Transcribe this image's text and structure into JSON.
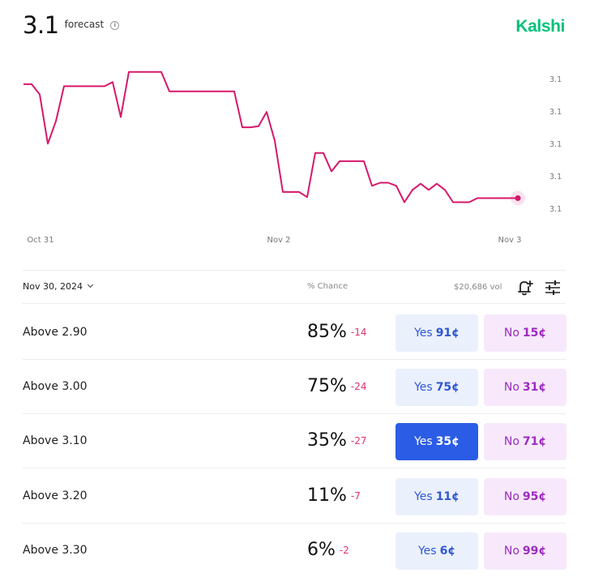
{
  "header": {
    "value": "3.1",
    "label": "forecast",
    "info_icon": "info-icon",
    "brand": "Kalshi"
  },
  "chart_data": {
    "type": "line",
    "series_color": "#d6186b",
    "y_tick_labels": [
      "3.1",
      "3.1",
      "3.1",
      "3.1",
      "3.1"
    ],
    "x_tick_labels": [
      "Oct 31",
      "Nov 2",
      "Nov 3"
    ],
    "x": [
      0,
      1,
      2,
      3,
      4,
      5,
      6,
      7,
      8,
      9,
      10,
      11,
      12,
      13,
      14,
      15,
      16,
      17,
      18,
      19,
      20,
      21,
      22,
      23,
      24,
      25,
      26,
      27,
      28,
      29,
      30,
      31,
      32,
      33,
      34,
      35,
      36,
      37,
      38,
      39,
      40,
      41,
      42,
      43,
      44,
      45,
      46,
      47,
      48,
      49,
      50,
      51,
      52,
      53,
      54,
      55,
      56,
      57,
      58,
      59,
      60,
      61
    ],
    "values": [
      88,
      88,
      78,
      30,
      52,
      86,
      86,
      86,
      86,
      86,
      86,
      90,
      56,
      100,
      100,
      100,
      100,
      100,
      81,
      81,
      81,
      81,
      81,
      81,
      81,
      81,
      81,
      46,
      46,
      47,
      61,
      33,
      -17,
      -17,
      -17,
      -22,
      21,
      21,
      3,
      13,
      13,
      13,
      13,
      -11,
      -8,
      -8,
      -11,
      -27,
      -15,
      -9,
      -15,
      -9,
      -15,
      -27,
      -27,
      -27,
      -23,
      -23,
      -23,
      -23,
      -23,
      -23
    ],
    "ylim": [
      -40,
      110
    ],
    "last_point_marker": true
  },
  "toolbar": {
    "date": "Nov 30, 2024",
    "chance_label": "% Chance",
    "volume": "$20,686 vol"
  },
  "markets": [
    {
      "name": "Above 2.90",
      "chance": "85%",
      "delta": "-14",
      "yes_label": "Yes",
      "yes_price": "91¢",
      "no_label": "No",
      "no_price": "15¢",
      "chance_value": 85
    },
    {
      "name": "Above 3.00",
      "chance": "75%",
      "delta": "-24",
      "yes_label": "Yes",
      "yes_price": "75¢",
      "no_label": "No",
      "no_price": "31¢",
      "chance_value": 75
    },
    {
      "name": "Above 3.10",
      "chance": "35%",
      "delta": "-27",
      "yes_label": "Yes",
      "yes_price": "35¢",
      "no_label": "No",
      "no_price": "71¢",
      "chance_value": 35,
      "selected": true
    },
    {
      "name": "Above 3.20",
      "chance": "11%",
      "delta": "-7",
      "yes_label": "Yes",
      "yes_price": "11¢",
      "no_label": "No",
      "no_price": "95¢",
      "chance_value": 11
    },
    {
      "name": "Above 3.30",
      "chance": "6%",
      "delta": "-2",
      "yes_label": "Yes",
      "yes_price": "6¢",
      "no_label": "No",
      "no_price": "99¢",
      "chance_value": 6
    }
  ],
  "colors": {
    "brand": "#00c27a",
    "line": "#d6186b",
    "yes_bg": "#ebf0fd",
    "yes_text": "#2e57d6",
    "yes_active": "#2b5ce6",
    "no_bg": "#f7e9fb",
    "no_text": "#9d2bc0",
    "delta": "#e0336b"
  }
}
